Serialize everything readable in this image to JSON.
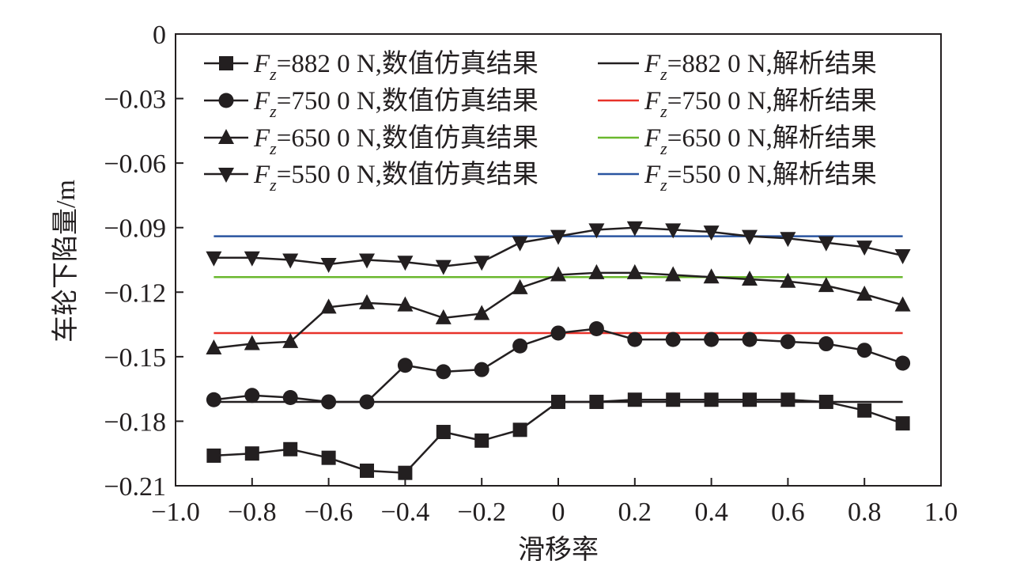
{
  "chart_data": {
    "type": "line",
    "xlabel": "滑移率",
    "ylabel": "车轮下陷量/m",
    "xlim": [
      -1.0,
      1.0
    ],
    "ylim": [
      -0.21,
      0
    ],
    "x_ticks": [
      "−1.0",
      "−0.8",
      "−0.6",
      "−0.4",
      "−0.2",
      "0",
      "0.2",
      "0.4",
      "0.6",
      "0.8",
      "1.0"
    ],
    "x_tick_values": [
      -1.0,
      -0.8,
      -0.6,
      -0.4,
      -0.2,
      0,
      0.2,
      0.4,
      0.6,
      0.8,
      1.0
    ],
    "y_ticks": [
      "0",
      "−0.03",
      "−0.06",
      "−0.09",
      "−0.12",
      "−0.15",
      "−0.18",
      "−0.21"
    ],
    "y_tick_values": [
      0,
      -0.03,
      -0.06,
      -0.09,
      -0.12,
      -0.15,
      -0.18,
      -0.21
    ],
    "grid": false,
    "legend_position": "top",
    "x": [
      -0.9,
      -0.8,
      -0.7,
      -0.6,
      -0.5,
      -0.4,
      -0.3,
      -0.2,
      -0.1,
      0,
      0.1,
      0.2,
      0.3,
      0.4,
      0.5,
      0.6,
      0.7,
      0.8,
      0.9
    ],
    "series": [
      {
        "name_prefix": "F",
        "name_sub": "z",
        "name_suffix": "=882 0 N,数值仿真结果",
        "marker": "square",
        "color": "#231f20",
        "values": [
          -0.196,
          -0.195,
          -0.193,
          -0.197,
          -0.203,
          -0.204,
          -0.185,
          -0.189,
          -0.184,
          -0.171,
          -0.171,
          -0.17,
          -0.17,
          -0.17,
          -0.17,
          -0.17,
          -0.171,
          -0.175,
          -0.181
        ]
      },
      {
        "name_prefix": "F",
        "name_sub": "z",
        "name_suffix": "=750 0 N,数值仿真结果",
        "marker": "circle",
        "color": "#231f20",
        "values": [
          -0.17,
          -0.168,
          -0.169,
          -0.171,
          -0.171,
          -0.154,
          -0.157,
          -0.156,
          -0.145,
          -0.139,
          -0.137,
          -0.142,
          -0.142,
          -0.142,
          -0.142,
          -0.143,
          -0.144,
          -0.147,
          -0.153
        ]
      },
      {
        "name_prefix": "F",
        "name_sub": "z",
        "name_suffix": "=650 0 N,数值仿真结果",
        "marker": "triangle-up",
        "color": "#231f20",
        "values": [
          -0.146,
          -0.144,
          -0.143,
          -0.127,
          -0.125,
          -0.126,
          -0.132,
          -0.13,
          -0.118,
          -0.112,
          -0.111,
          -0.111,
          -0.112,
          -0.113,
          -0.114,
          -0.115,
          -0.117,
          -0.121,
          -0.126
        ]
      },
      {
        "name_prefix": "F",
        "name_sub": "z",
        "name_suffix": "=550 0 N,数值仿真结果",
        "marker": "triangle-down",
        "color": "#231f20",
        "values": [
          -0.104,
          -0.104,
          -0.105,
          -0.107,
          -0.105,
          -0.106,
          -0.108,
          -0.106,
          -0.097,
          -0.094,
          -0.091,
          -0.09,
          -0.091,
          -0.092,
          -0.094,
          -0.095,
          -0.097,
          -0.099,
          -0.103
        ]
      }
    ],
    "reference_lines": [
      {
        "name_prefix": "F",
        "name_sub": "z",
        "name_suffix": "=882 0 N,解析结果",
        "color": "#231f20",
        "y": -0.171,
        "x_range": [
          -0.9,
          0.9
        ]
      },
      {
        "name_prefix": "F",
        "name_sub": "z",
        "name_suffix": "=750 0 N,解析结果",
        "color": "#e8322a",
        "y": -0.139,
        "x_range": [
          -0.9,
          0.9
        ]
      },
      {
        "name_prefix": "F",
        "name_sub": "z",
        "name_suffix": "=650 0 N,解析结果",
        "color": "#6ab82e",
        "y": -0.113,
        "x_range": [
          -0.9,
          0.9
        ]
      },
      {
        "name_prefix": "F",
        "name_sub": "z",
        "name_suffix": "=550 0 N,解析结果",
        "color": "#2a55a0",
        "y": -0.094,
        "x_range": [
          -0.9,
          0.9
        ]
      }
    ]
  }
}
